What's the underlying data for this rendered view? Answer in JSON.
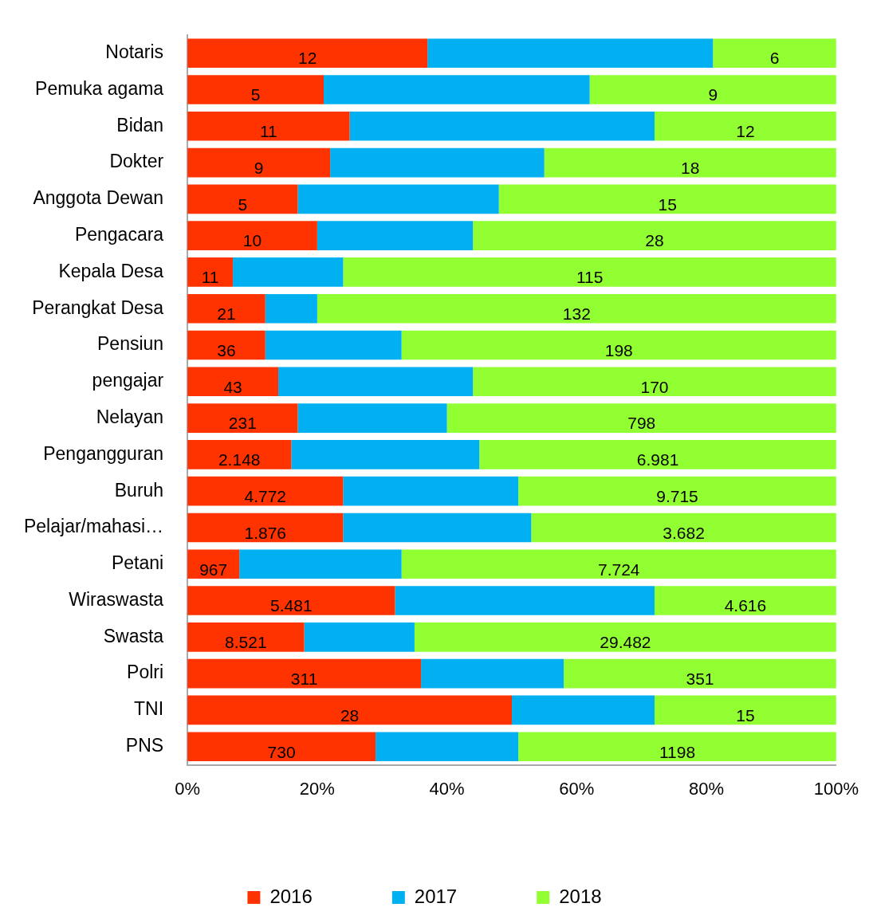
{
  "chart_data": {
    "type": "bar",
    "orientation": "horizontal",
    "stacked": true,
    "legend": "bottom",
    "categories": [
      "Notaris",
      "Pemuka agama",
      "Bidan",
      "Dokter",
      "Anggota Dewan",
      "Pengacara",
      "Kepala Desa",
      "Perangkat Desa",
      "Pensiun",
      "pengajar",
      "Nelayan",
      "Pengangguran",
      "Buruh",
      "Pelajar/mahasi…",
      "Petani",
      "Wiraswasta",
      "Swasta",
      "Polri",
      "TNI",
      "PNS"
    ],
    "xlim": [
      0,
      100
    ],
    "xticks": [
      {
        "value": 0,
        "label": "0%"
      },
      {
        "value": 20,
        "label": "20%"
      },
      {
        "value": 40,
        "label": "40%"
      },
      {
        "value": 60,
        "label": "60%"
      },
      {
        "value": 80,
        "label": "80%"
      },
      {
        "value": 100,
        "label": "100%"
      }
    ],
    "series": [
      {
        "name": "2016",
        "color": "#ff3300",
        "values": [
          37,
          21,
          25,
          22,
          17,
          20,
          7,
          12,
          12,
          14,
          17,
          16,
          24,
          24,
          8,
          32,
          18,
          36,
          50,
          29
        ]
      },
      {
        "name": "2017",
        "color": "#00b0f0",
        "values": [
          44,
          41,
          47,
          33,
          31,
          24,
          17,
          8,
          21,
          30,
          23,
          29,
          27,
          29,
          25,
          40,
          17,
          22,
          22,
          22
        ]
      },
      {
        "name": "2018",
        "color": "#92ff33",
        "values": [
          19,
          38,
          28,
          45,
          52,
          56,
          76,
          80,
          67,
          56,
          60,
          55,
          49,
          47,
          67,
          28,
          65,
          42,
          28,
          49
        ]
      }
    ],
    "annotations": [
      {
        "text": "12",
        "x": 18.5,
        "y": "Notaris"
      },
      {
        "text": "6",
        "x": 90.5,
        "y": "Notaris"
      },
      {
        "text": "5",
        "x": 10.5,
        "y": "Pemuka agama"
      },
      {
        "text": "9",
        "x": 81,
        "y": "Pemuka agama"
      },
      {
        "text": "11",
        "x": 12.5,
        "y": "Bidan"
      },
      {
        "text": "12",
        "x": 86,
        "y": "Bidan"
      },
      {
        "text": "9",
        "x": 11,
        "y": "Dokter"
      },
      {
        "text": "18",
        "x": 77.5,
        "y": "Dokter"
      },
      {
        "text": "5",
        "x": 8.5,
        "y": "Anggota Dewan"
      },
      {
        "text": "15",
        "x": 74,
        "y": "Anggota Dewan"
      },
      {
        "text": "10",
        "x": 10,
        "y": "Pengacara"
      },
      {
        "text": "28",
        "x": 72,
        "y": "Pengacara"
      },
      {
        "text": "11",
        "x": 3.5,
        "y": "Kepala Desa"
      },
      {
        "text": "115",
        "x": 62,
        "y": "Kepala Desa"
      },
      {
        "text": "21",
        "x": 6,
        "y": "Perangkat Desa"
      },
      {
        "text": "132",
        "x": 60,
        "y": "Perangkat Desa"
      },
      {
        "text": "36",
        "x": 6,
        "y": "Pensiun"
      },
      {
        "text": "198",
        "x": 66.5,
        "y": "Pensiun"
      },
      {
        "text": "43",
        "x": 7,
        "y": "pengajar"
      },
      {
        "text": "170",
        "x": 72,
        "y": "pengajar"
      },
      {
        "text": "231",
        "x": 8.5,
        "y": "Nelayan"
      },
      {
        "text": "798",
        "x": 70,
        "y": "Nelayan"
      },
      {
        "text": "2.148",
        "x": 8,
        "y": "Pengangguran"
      },
      {
        "text": "6.981",
        "x": 72.5,
        "y": "Pengangguran"
      },
      {
        "text": "4.772",
        "x": 12,
        "y": "Buruh"
      },
      {
        "text": "9.715",
        "x": 75.5,
        "y": "Buruh"
      },
      {
        "text": "1.876",
        "x": 12,
        "y": "Pelajar/mahasi…"
      },
      {
        "text": "3.682",
        "x": 76.5,
        "y": "Pelajar/mahasi…"
      },
      {
        "text": "967",
        "x": 4,
        "y": "Petani"
      },
      {
        "text": "7.724",
        "x": 66.5,
        "y": "Petani"
      },
      {
        "text": "5.481",
        "x": 16,
        "y": "Wiraswasta"
      },
      {
        "text": "4.616",
        "x": 86,
        "y": "Wiraswasta"
      },
      {
        "text": "8.521",
        "x": 9,
        "y": "Swasta"
      },
      {
        "text": "29.482",
        "x": 67.5,
        "y": "Swasta"
      },
      {
        "text": "311",
        "x": 18,
        "y": "Polri"
      },
      {
        "text": "351",
        "x": 79,
        "y": "Polri"
      },
      {
        "text": "28",
        "x": 25,
        "y": "TNI"
      },
      {
        "text": "15",
        "x": 86,
        "y": "TNI"
      },
      {
        "text": "730",
        "x": 14.5,
        "y": "PNS"
      },
      {
        "text": "1198",
        "x": 75.5,
        "y": "PNS"
      }
    ]
  }
}
